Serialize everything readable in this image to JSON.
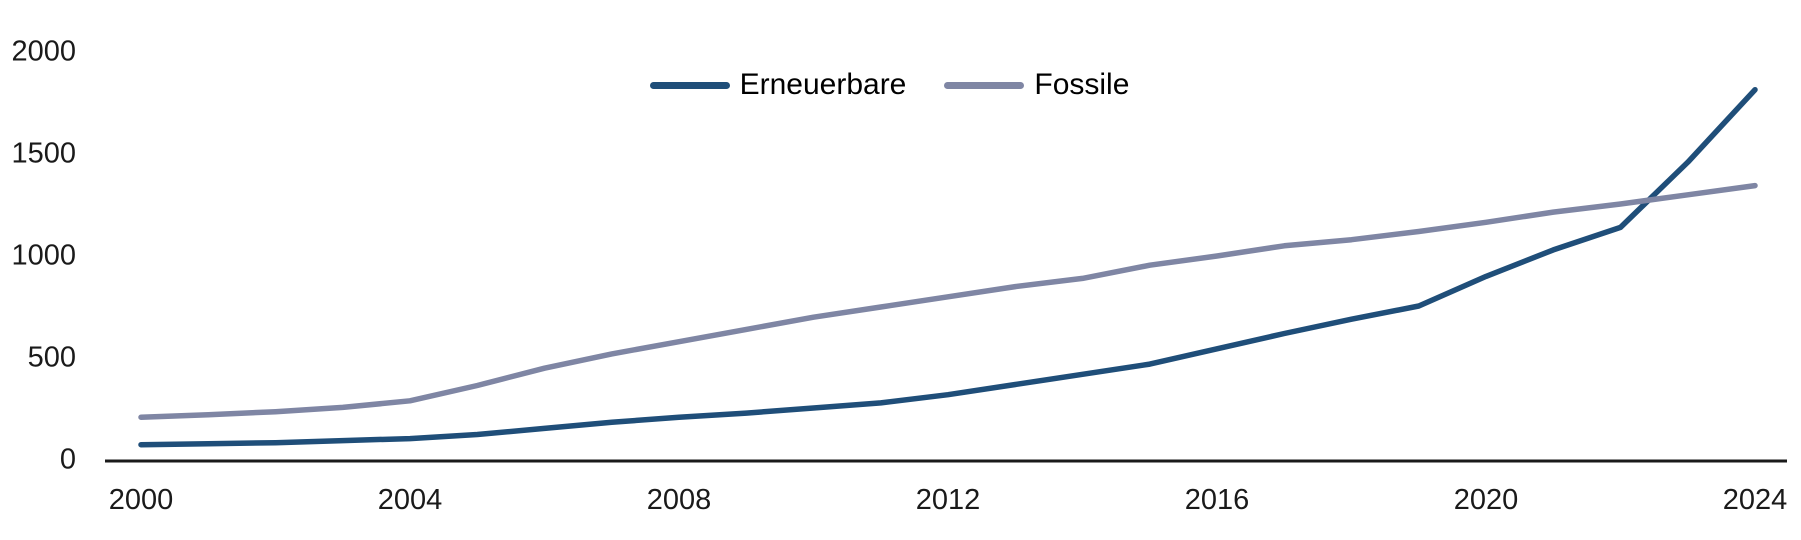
{
  "chart_data": {
    "type": "line",
    "title": "",
    "xlabel": "",
    "ylabel": "",
    "x": [
      2000,
      2001,
      2002,
      2003,
      2004,
      2005,
      2006,
      2007,
      2008,
      2009,
      2010,
      2011,
      2012,
      2013,
      2014,
      2015,
      2016,
      2017,
      2018,
      2019,
      2020,
      2021,
      2022,
      2023,
      2024
    ],
    "series": [
      {
        "name": "Erneuerbare",
        "color": "#1f4e79",
        "values": [
          75,
          80,
          85,
          95,
          105,
          125,
          155,
          185,
          210,
          230,
          255,
          280,
          320,
          370,
          420,
          470,
          545,
          620,
          690,
          755,
          900,
          1030,
          1140,
          1460,
          1815
        ]
      },
      {
        "name": "Fossile",
        "color": "#7f86a4",
        "values": [
          210,
          222,
          237,
          258,
          290,
          365,
          450,
          520,
          580,
          640,
          700,
          750,
          800,
          850,
          890,
          955,
          1000,
          1050,
          1080,
          1120,
          1165,
          1215,
          1255,
          1300,
          1345
        ]
      }
    ],
    "xticks": [
      2000,
      2004,
      2008,
      2012,
      2016,
      2020,
      2024
    ],
    "yticks": [
      0,
      500,
      1000,
      1500,
      2000
    ],
    "xlim": [
      2000,
      2024
    ],
    "ylim": [
      0,
      2000
    ],
    "grid": false,
    "legend_position": "top-center",
    "axis_color": "#1a1a1a",
    "line_width": 5.5
  },
  "legend": {
    "items": [
      {
        "label": "Erneuerbare"
      },
      {
        "label": "Fossile"
      }
    ]
  }
}
